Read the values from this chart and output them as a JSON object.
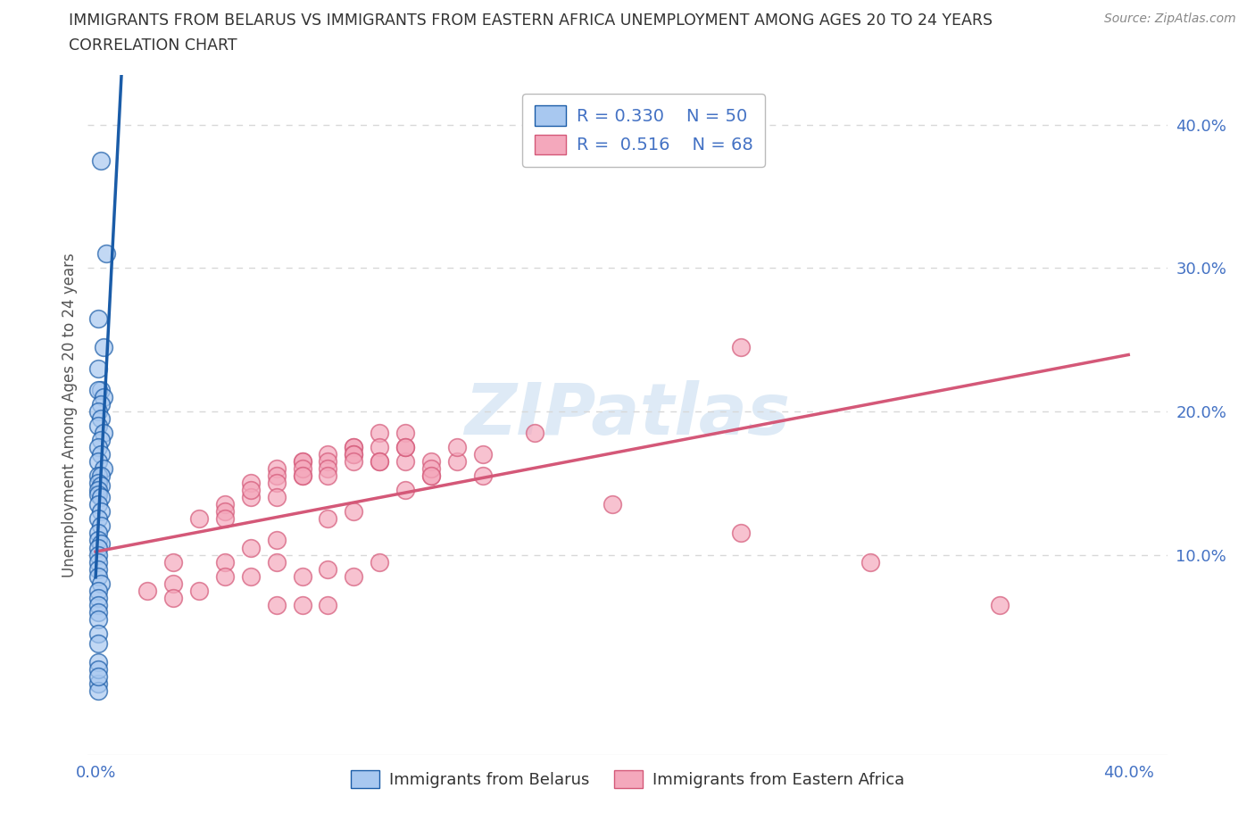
{
  "title_line1": "IMMIGRANTS FROM BELARUS VS IMMIGRANTS FROM EASTERN AFRICA UNEMPLOYMENT AMONG AGES 20 TO 24 YEARS",
  "title_line2": "CORRELATION CHART",
  "source": "Source: ZipAtlas.com",
  "ylabel": "Unemployment Among Ages 20 to 24 years",
  "xlim": [
    -0.003,
    0.415
  ],
  "ylim": [
    -0.04,
    0.435
  ],
  "belarus_color": "#a8c8f0",
  "eastern_africa_color": "#f4a8bc",
  "belarus_line_color": "#1a5ca8",
  "eastern_africa_line_color": "#d45878",
  "dashed_line_color": "#90b8e0",
  "watermark_color": "#c8ddf0",
  "legend_R_belarus": "R = 0.330",
  "legend_N_belarus": "N = 50",
  "legend_R_eastern": "R =  0.516",
  "legend_N_eastern": "N = 68",
  "legend_text_color": "#4472c4",
  "axis_label_color": "#4472c4",
  "belarus_x": [
    0.002,
    0.004,
    0.001,
    0.003,
    0.001,
    0.002,
    0.001,
    0.003,
    0.002,
    0.001,
    0.002,
    0.001,
    0.003,
    0.002,
    0.001,
    0.002,
    0.001,
    0.003,
    0.001,
    0.002,
    0.001,
    0.002,
    0.001,
    0.001,
    0.002,
    0.001,
    0.002,
    0.001,
    0.002,
    0.001,
    0.001,
    0.002,
    0.001,
    0.001,
    0.001,
    0.001,
    0.001,
    0.002,
    0.001,
    0.001,
    0.001,
    0.001,
    0.001,
    0.001,
    0.001,
    0.001,
    0.001,
    0.001,
    0.001,
    0.001
  ],
  "belarus_y": [
    0.375,
    0.31,
    0.265,
    0.245,
    0.23,
    0.215,
    0.215,
    0.21,
    0.205,
    0.2,
    0.195,
    0.19,
    0.185,
    0.18,
    0.175,
    0.17,
    0.165,
    0.16,
    0.155,
    0.155,
    0.15,
    0.148,
    0.145,
    0.142,
    0.14,
    0.135,
    0.13,
    0.125,
    0.12,
    0.115,
    0.11,
    0.108,
    0.105,
    0.1,
    0.095,
    0.09,
    0.085,
    0.08,
    0.075,
    0.07,
    0.065,
    0.06,
    0.055,
    0.045,
    0.038,
    0.025,
    0.01,
    0.005,
    0.02,
    0.015
  ],
  "eastern_x": [
    0.03,
    0.05,
    0.07,
    0.09,
    0.1,
    0.12,
    0.13,
    0.14,
    0.15,
    0.17,
    0.08,
    0.1,
    0.12,
    0.07,
    0.09,
    0.11,
    0.06,
    0.08,
    0.1,
    0.13,
    0.05,
    0.07,
    0.09,
    0.11,
    0.13,
    0.06,
    0.08,
    0.1,
    0.12,
    0.14,
    0.04,
    0.06,
    0.08,
    0.1,
    0.12,
    0.05,
    0.07,
    0.09,
    0.11,
    0.03,
    0.05,
    0.07,
    0.09,
    0.11,
    0.13,
    0.08,
    0.1,
    0.12,
    0.15,
    0.2,
    0.25,
    0.3,
    0.35,
    0.25,
    0.08,
    0.06,
    0.09,
    0.11,
    0.07,
    0.04,
    0.02,
    0.03,
    0.06,
    0.08,
    0.1,
    0.05,
    0.07,
    0.09
  ],
  "eastern_y": [
    0.08,
    0.095,
    0.11,
    0.125,
    0.13,
    0.145,
    0.155,
    0.165,
    0.17,
    0.185,
    0.165,
    0.175,
    0.185,
    0.16,
    0.17,
    0.185,
    0.15,
    0.165,
    0.175,
    0.165,
    0.135,
    0.155,
    0.165,
    0.175,
    0.16,
    0.14,
    0.155,
    0.17,
    0.165,
    0.175,
    0.125,
    0.145,
    0.16,
    0.17,
    0.175,
    0.13,
    0.15,
    0.16,
    0.165,
    0.095,
    0.125,
    0.14,
    0.155,
    0.165,
    0.155,
    0.155,
    0.165,
    0.175,
    0.155,
    0.135,
    0.115,
    0.095,
    0.065,
    0.245,
    0.085,
    0.105,
    0.09,
    0.095,
    0.095,
    0.075,
    0.075,
    0.07,
    0.085,
    0.065,
    0.085,
    0.085,
    0.065,
    0.065
  ]
}
